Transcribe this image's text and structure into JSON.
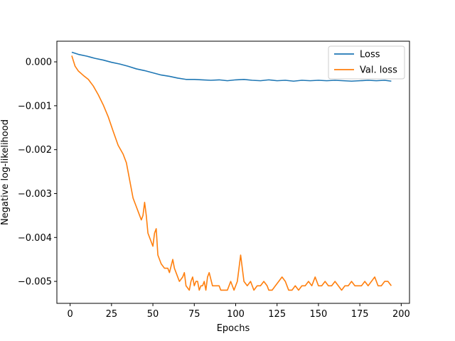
{
  "chart_data": {
    "type": "line",
    "title": "",
    "xlabel": "Epochs",
    "ylabel": "Negative log-likelihood",
    "xlim": [
      -8,
      205
    ],
    "ylim": [
      -0.0055,
      0.00047
    ],
    "xticks": [
      {
        "value": 0,
        "label": "0"
      },
      {
        "value": 25,
        "label": "25"
      },
      {
        "value": 50,
        "label": "50"
      },
      {
        "value": 75,
        "label": "75"
      },
      {
        "value": 100,
        "label": "100"
      },
      {
        "value": 125,
        "label": "125"
      },
      {
        "value": 150,
        "label": "150"
      },
      {
        "value": 175,
        "label": "175"
      },
      {
        "value": 200,
        "label": "200"
      }
    ],
    "yticks": [
      {
        "value": 0.0,
        "label": "0.000"
      },
      {
        "value": -0.001,
        "label": "−0.001"
      },
      {
        "value": -0.002,
        "label": "−0.002"
      },
      {
        "value": -0.003,
        "label": "−0.003"
      },
      {
        "value": -0.004,
        "label": "−0.004"
      },
      {
        "value": -0.005,
        "label": "−0.005"
      }
    ],
    "grid": false,
    "legend_position": "upper-right",
    "series": [
      {
        "name": "Loss",
        "color": "#1f77b4",
        "points": [
          [
            1,
            0.00022
          ],
          [
            5,
            0.00017
          ],
          [
            10,
            0.00013
          ],
          [
            15,
            8e-05
          ],
          [
            20,
            4e-05
          ],
          [
            25,
            -1e-05
          ],
          [
            30,
            -5e-05
          ],
          [
            35,
            -0.0001
          ],
          [
            40,
            -0.00016
          ],
          [
            45,
            -0.0002
          ],
          [
            50,
            -0.00025
          ],
          [
            55,
            -0.0003
          ],
          [
            60,
            -0.00033
          ],
          [
            65,
            -0.00037
          ],
          [
            70,
            -0.0004
          ],
          [
            75,
            -0.0004
          ],
          [
            80,
            -0.00041
          ],
          [
            85,
            -0.00042
          ],
          [
            90,
            -0.00041
          ],
          [
            95,
            -0.00043
          ],
          [
            100,
            -0.00041
          ],
          [
            105,
            -0.0004
          ],
          [
            110,
            -0.00042
          ],
          [
            115,
            -0.00043
          ],
          [
            120,
            -0.00041
          ],
          [
            125,
            -0.00043
          ],
          [
            130,
            -0.00042
          ],
          [
            135,
            -0.00044
          ],
          [
            140,
            -0.00042
          ],
          [
            145,
            -0.00043
          ],
          [
            150,
            -0.00042
          ],
          [
            155,
            -0.00043
          ],
          [
            160,
            -0.00042
          ],
          [
            165,
            -0.00043
          ],
          [
            170,
            -0.00044
          ],
          [
            175,
            -0.00043
          ],
          [
            180,
            -0.00042
          ],
          [
            185,
            -0.00043
          ],
          [
            190,
            -0.00042
          ],
          [
            194,
            -0.00044
          ]
        ]
      },
      {
        "name": "Val. loss",
        "color": "#ff7f0e",
        "points": [
          [
            1,
            0.00014
          ],
          [
            3,
            -0.0001
          ],
          [
            5,
            -0.00021
          ],
          [
            8,
            -0.00031
          ],
          [
            11,
            -0.0004
          ],
          [
            14,
            -0.00055
          ],
          [
            17,
            -0.00075
          ],
          [
            20,
            -0.00098
          ],
          [
            23,
            -0.00125
          ],
          [
            26,
            -0.00158
          ],
          [
            29,
            -0.0019
          ],
          [
            32,
            -0.0021
          ],
          [
            34,
            -0.0023
          ],
          [
            36,
            -0.0027
          ],
          [
            38,
            -0.0031
          ],
          [
            40,
            -0.0033
          ],
          [
            41,
            -0.0034
          ],
          [
            43,
            -0.0036
          ],
          [
            44,
            -0.0035
          ],
          [
            45,
            -0.0032
          ],
          [
            46,
            -0.0035
          ],
          [
            47,
            -0.0039
          ],
          [
            48,
            -0.004
          ],
          [
            50,
            -0.0042
          ],
          [
            51,
            -0.0039
          ],
          [
            52,
            -0.0038
          ],
          [
            53,
            -0.0044
          ],
          [
            55,
            -0.0046
          ],
          [
            57,
            -0.0047
          ],
          [
            59,
            -0.0047
          ],
          [
            60,
            -0.0048
          ],
          [
            62,
            -0.0045
          ],
          [
            63,
            -0.0047
          ],
          [
            65,
            -0.0049
          ],
          [
            66,
            -0.005
          ],
          [
            68,
            -0.0049
          ],
          [
            69,
            -0.0048
          ],
          [
            70,
            -0.0051
          ],
          [
            72,
            -0.0052
          ],
          [
            73,
            -0.005
          ],
          [
            74,
            -0.0049
          ],
          [
            75,
            -0.0051
          ],
          [
            76,
            -0.005
          ],
          [
            77,
            -0.005
          ],
          [
            78,
            -0.0052
          ],
          [
            79,
            -0.0051
          ],
          [
            80,
            -0.0051
          ],
          [
            81,
            -0.005
          ],
          [
            82,
            -0.0052
          ],
          [
            83,
            -0.0049
          ],
          [
            84,
            -0.0048
          ],
          [
            86,
            -0.0051
          ],
          [
            88,
            -0.0051
          ],
          [
            90,
            -0.0051
          ],
          [
            91,
            -0.0052
          ],
          [
            93,
            -0.0052
          ],
          [
            95,
            -0.0052
          ],
          [
            97,
            -0.005
          ],
          [
            98,
            -0.0051
          ],
          [
            99,
            -0.0052
          ],
          [
            101,
            -0.005
          ],
          [
            102,
            -0.0047
          ],
          [
            103,
            -0.0044
          ],
          [
            104,
            -0.0047
          ],
          [
            105,
            -0.005
          ],
          [
            107,
            -0.0051
          ],
          [
            109,
            -0.005
          ],
          [
            111,
            -0.0052
          ],
          [
            113,
            -0.0051
          ],
          [
            115,
            -0.0051
          ],
          [
            117,
            -0.005
          ],
          [
            119,
            -0.0051
          ],
          [
            120,
            -0.0052
          ],
          [
            122,
            -0.0052
          ],
          [
            124,
            -0.0051
          ],
          [
            126,
            -0.005
          ],
          [
            128,
            -0.0049
          ],
          [
            130,
            -0.005
          ],
          [
            132,
            -0.0052
          ],
          [
            134,
            -0.0052
          ],
          [
            136,
            -0.0051
          ],
          [
            138,
            -0.0052
          ],
          [
            140,
            -0.0051
          ],
          [
            142,
            -0.0051
          ],
          [
            144,
            -0.005
          ],
          [
            146,
            -0.0051
          ],
          [
            148,
            -0.0049
          ],
          [
            150,
            -0.0051
          ],
          [
            152,
            -0.0051
          ],
          [
            154,
            -0.005
          ],
          [
            156,
            -0.0051
          ],
          [
            158,
            -0.0051
          ],
          [
            160,
            -0.005
          ],
          [
            162,
            -0.0051
          ],
          [
            164,
            -0.0052
          ],
          [
            166,
            -0.0051
          ],
          [
            168,
            -0.0051
          ],
          [
            170,
            -0.005
          ],
          [
            172,
            -0.0051
          ],
          [
            174,
            -0.0051
          ],
          [
            176,
            -0.0051
          ],
          [
            178,
            -0.005
          ],
          [
            180,
            -0.0051
          ],
          [
            182,
            -0.005
          ],
          [
            184,
            -0.0049
          ],
          [
            186,
            -0.0051
          ],
          [
            188,
            -0.0051
          ],
          [
            190,
            -0.005
          ],
          [
            192,
            -0.005
          ],
          [
            194,
            -0.0051
          ]
        ]
      }
    ]
  }
}
